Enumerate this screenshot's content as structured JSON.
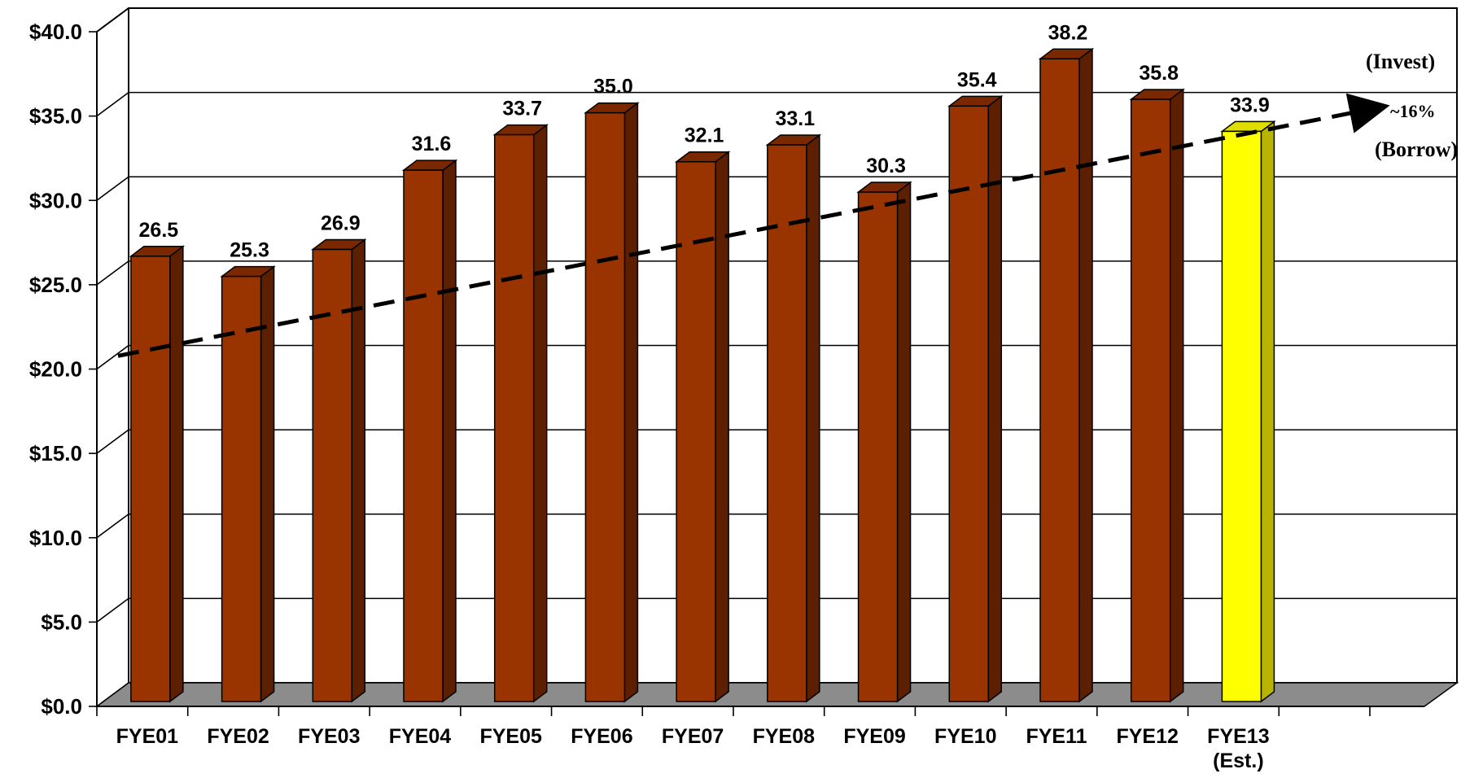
{
  "chart_data": {
    "type": "bar",
    "title": "",
    "xlabel": "",
    "ylabel": "",
    "ylim": [
      0,
      40
    ],
    "y_ticks": [
      "$0.0",
      "$5.0",
      "$10.0",
      "$15.0",
      "$20.0",
      "$25.0",
      "$30.0",
      "$35.0",
      "$40.0"
    ],
    "grid": true,
    "categories": [
      "FYE01",
      "FYE02",
      "FYE03",
      "FYE04",
      "FYE05",
      "FYE06",
      "FYE07",
      "FYE08",
      "FYE09",
      "FYE10",
      "FYE11",
      "FYE12",
      "FYE13"
    ],
    "category_sublabels": [
      "",
      "",
      "",
      "",
      "",
      "",
      "",
      "",
      "",
      "",
      "",
      "",
      "(Est.)"
    ],
    "values": [
      26.5,
      25.3,
      26.9,
      31.6,
      33.7,
      35.0,
      32.1,
      33.1,
      30.3,
      35.4,
      38.2,
      35.8,
      33.9
    ],
    "value_labels": [
      "26.5",
      "25.3",
      "26.9",
      "31.6",
      "33.7",
      "35.0",
      "32.1",
      "33.1",
      "30.3",
      "35.4",
      "38.2",
      "35.8",
      "33.9"
    ],
    "bar_color": "#993300",
    "highlight_index": 12,
    "highlight_color": "#FFFF00",
    "trend_line": {
      "style": "dashed",
      "color": "#000000",
      "start_value": 20.3,
      "end_value": 34.0
    },
    "annotations": {
      "invest": "(Invest)",
      "pct": "~16%",
      "borrow": "(Borrow)"
    }
  }
}
